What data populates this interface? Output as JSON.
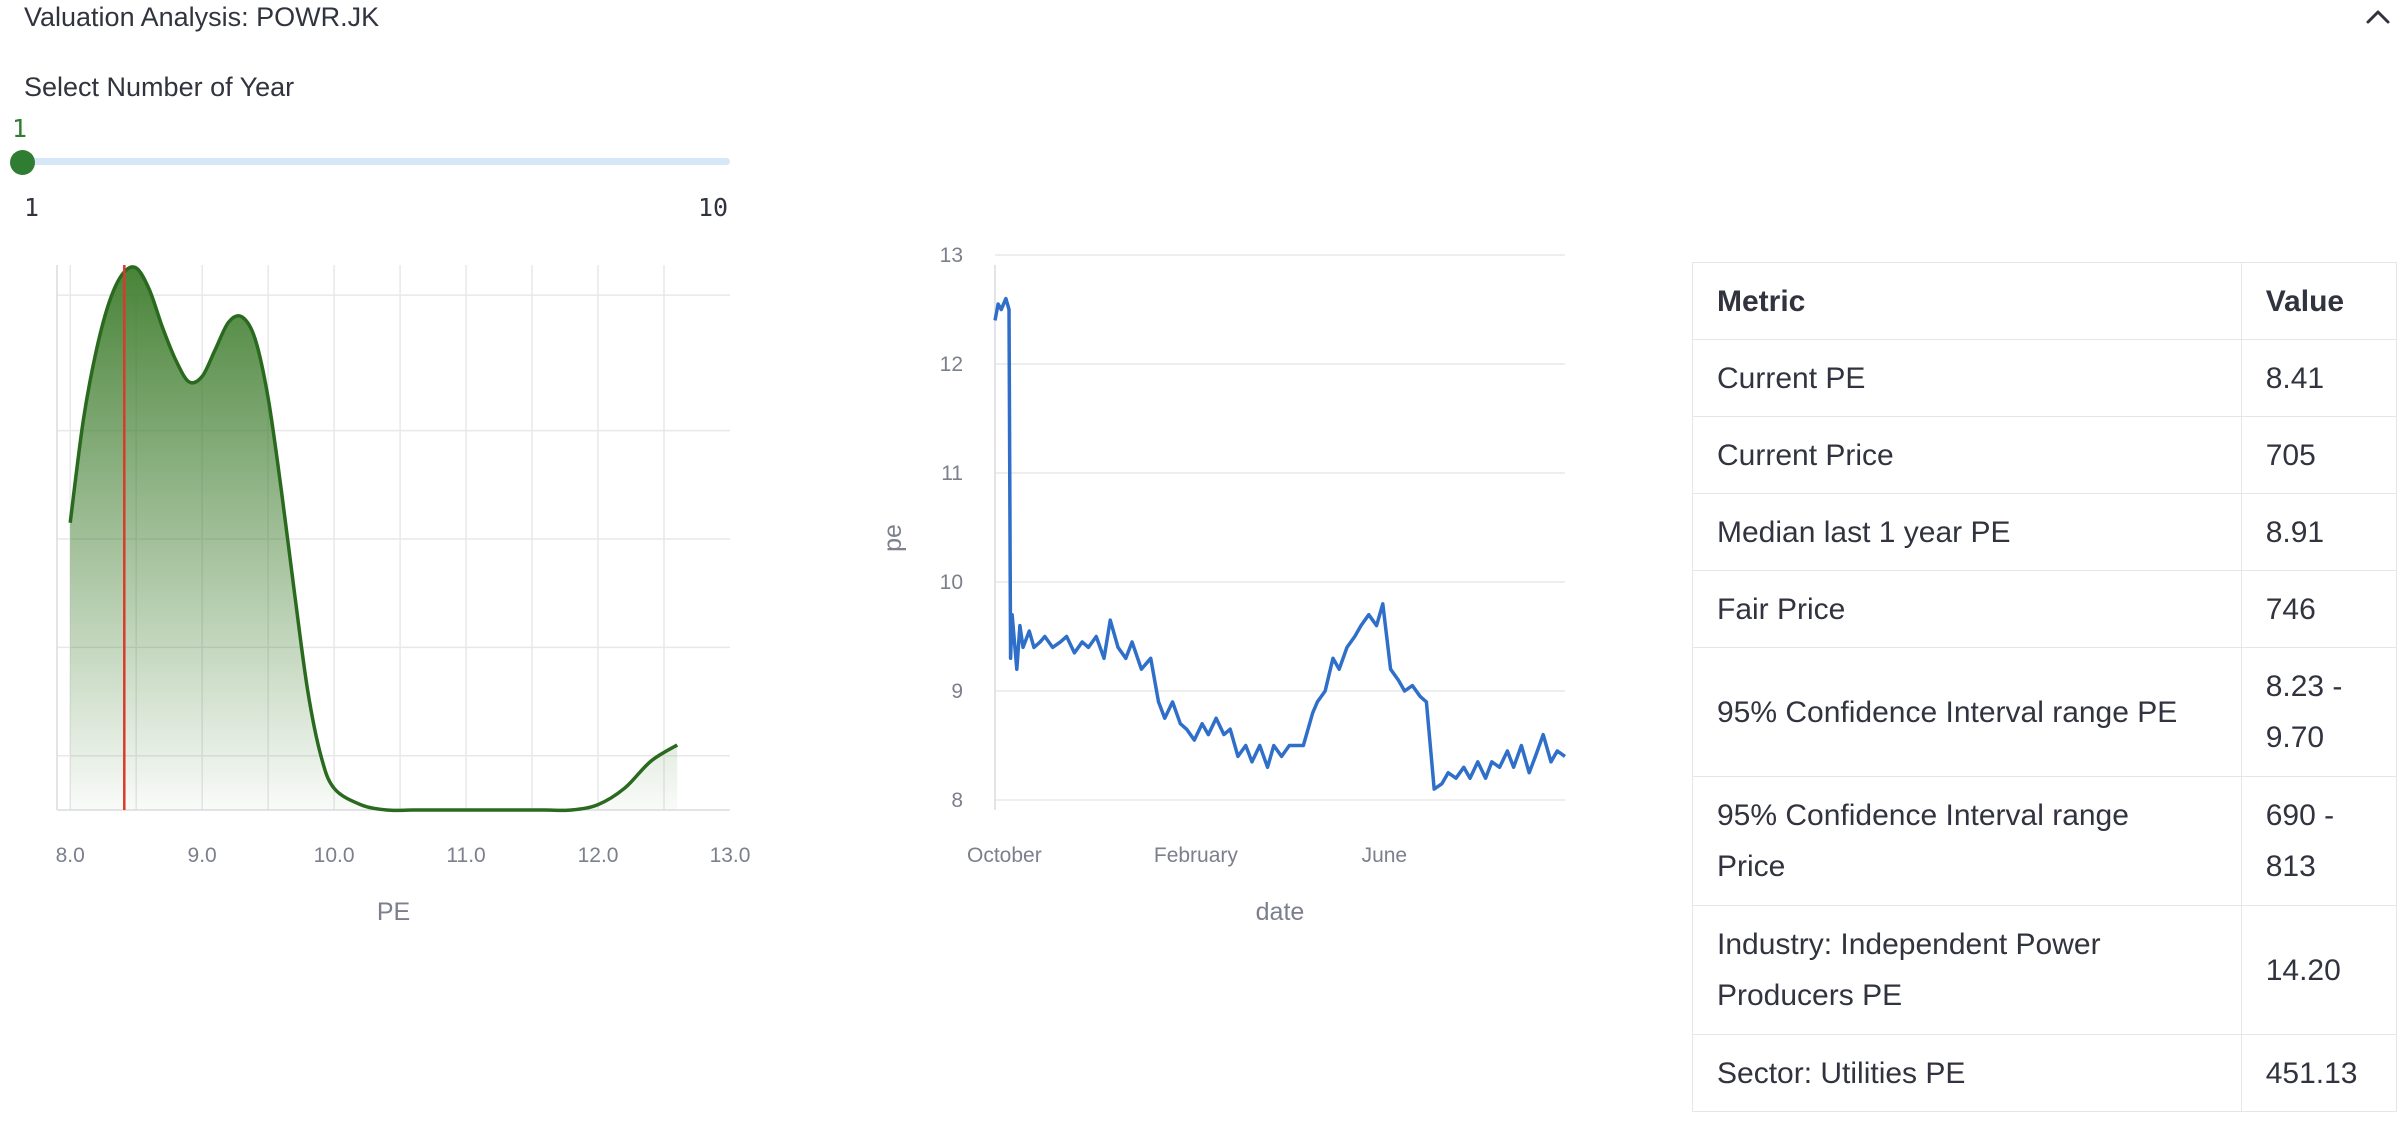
{
  "expander": {
    "title": "Valuation Analysis: POWR.JK",
    "collapse_icon": "chevron-up-icon"
  },
  "slider": {
    "label": "Select Number of Year",
    "value": "1",
    "min": "1",
    "max": "10"
  },
  "colors": {
    "accent_green": "#2e7d32",
    "kde_line": "#2a6a1f",
    "marker_red": "#d93a2b",
    "line_blue": "#2f6fc9",
    "grid": "#e8e8ea",
    "axis_text": "#7c7f8c"
  },
  "chart_data": [
    {
      "type": "area",
      "xlabel": "PE",
      "ylabel": "",
      "xlim": [
        7.9,
        13.0
      ],
      "x_ticks": [
        "8.0",
        "9.0",
        "10.0",
        "11.0",
        "12.0",
        "13.0"
      ],
      "grid": true,
      "marker_line": {
        "x": 8.41
      },
      "series": [
        {
          "x": [
            8.0,
            8.1,
            8.2,
            8.3,
            8.4,
            8.5,
            8.6,
            8.7,
            8.8,
            8.9,
            9.0,
            9.1,
            9.2,
            9.3,
            9.4,
            9.5,
            9.6,
            9.7,
            9.8,
            9.9,
            10.0,
            10.2,
            10.4,
            10.6,
            10.8,
            11.0,
            11.2,
            11.4,
            11.6,
            11.8,
            12.0,
            12.2,
            12.4,
            12.6
          ],
          "y": [
            0.53,
            0.72,
            0.85,
            0.94,
            0.99,
            1.0,
            0.96,
            0.89,
            0.83,
            0.79,
            0.8,
            0.85,
            0.9,
            0.91,
            0.87,
            0.76,
            0.59,
            0.4,
            0.22,
            0.1,
            0.04,
            0.01,
            0.0,
            0.0,
            0.0,
            0.0,
            0.0,
            0.0,
            0.0,
            0.0,
            0.01,
            0.04,
            0.09,
            0.12
          ]
        }
      ]
    },
    {
      "type": "line",
      "xlabel": "date",
      "ylabel": "pe",
      "ylim": [
        7.9,
        13.1
      ],
      "y_ticks": [
        "8",
        "9",
        "10",
        "11",
        "12",
        "13"
      ],
      "x_ticks": [
        "October",
        "February",
        "June"
      ],
      "grid": true,
      "series": [
        {
          "x": [
            "2023-09-25",
            "2023-09-27",
            "2023-09-29",
            "2023-10-02",
            "2023-10-04",
            "2023-10-05",
            "2023-10-06",
            "2023-10-09",
            "2023-10-11",
            "2023-10-13",
            "2023-10-17",
            "2023-10-20",
            "2023-10-24",
            "2023-10-27",
            "2023-11-01",
            "2023-11-06",
            "2023-11-10",
            "2023-11-15",
            "2023-11-20",
            "2023-11-24",
            "2023-11-29",
            "2023-12-04",
            "2023-12-08",
            "2023-12-13",
            "2023-12-18",
            "2023-12-22",
            "2023-12-28",
            "2024-01-03",
            "2024-01-08",
            "2024-01-12",
            "2024-01-17",
            "2024-01-22",
            "2024-01-26",
            "2024-01-31",
            "2024-02-05",
            "2024-02-09",
            "2024-02-14",
            "2024-02-19",
            "2024-02-23",
            "2024-02-28",
            "2024-03-04",
            "2024-03-08",
            "2024-03-13",
            "2024-03-18",
            "2024-03-22",
            "2024-03-27",
            "2024-04-01",
            "2024-04-05",
            "2024-04-10",
            "2024-04-16",
            "2024-04-19",
            "2024-04-24",
            "2024-04-29",
            "2024-05-03",
            "2024-05-08",
            "2024-05-13",
            "2024-05-17",
            "2024-05-22",
            "2024-05-27",
            "2024-05-31",
            "2024-06-05",
            "2024-06-10",
            "2024-06-14",
            "2024-06-19",
            "2024-06-24",
            "2024-06-28",
            "2024-07-03",
            "2024-07-08",
            "2024-07-12",
            "2024-07-17",
            "2024-07-22",
            "2024-07-26",
            "2024-07-31",
            "2024-08-05",
            "2024-08-09",
            "2024-08-14",
            "2024-08-19",
            "2024-08-23",
            "2024-08-28",
            "2024-09-02",
            "2024-09-06",
            "2024-09-11",
            "2024-09-16",
            "2024-09-20",
            "2024-09-25"
          ],
          "y": [
            12.4,
            12.55,
            12.5,
            12.6,
            12.5,
            9.3,
            9.7,
            9.2,
            9.6,
            9.4,
            9.55,
            9.4,
            9.45,
            9.5,
            9.4,
            9.45,
            9.5,
            9.35,
            9.45,
            9.4,
            9.5,
            9.3,
            9.65,
            9.4,
            9.3,
            9.45,
            9.2,
            9.3,
            8.9,
            8.75,
            8.9,
            8.7,
            8.65,
            8.55,
            8.7,
            8.6,
            8.75,
            8.6,
            8.65,
            8.4,
            8.5,
            8.35,
            8.5,
            8.3,
            8.5,
            8.4,
            8.5,
            8.5,
            8.5,
            8.8,
            8.9,
            9.0,
            9.3,
            9.2,
            9.4,
            9.5,
            9.6,
            9.7,
            9.6,
            9.8,
            9.2,
            9.1,
            9.0,
            9.05,
            8.95,
            8.9,
            8.1,
            8.15,
            8.25,
            8.2,
            8.3,
            8.2,
            8.35,
            8.2,
            8.35,
            8.3,
            8.45,
            8.3,
            8.5,
            8.25,
            8.4,
            8.6,
            8.35,
            8.45,
            8.4
          ]
        }
      ]
    }
  ],
  "table": {
    "headers": [
      "Metric",
      "Value"
    ],
    "rows": [
      [
        "Current PE",
        "8.41"
      ],
      [
        "Current Price",
        "705"
      ],
      [
        "Median last 1 year PE",
        "8.91"
      ],
      [
        "Fair Price",
        "746"
      ],
      [
        "95% Confidence Interval range PE",
        "8.23 - 9.70"
      ],
      [
        "95% Confidence Interval range Price",
        "690 - 813"
      ],
      [
        "Industry: Independent Power Producers PE",
        "14.20"
      ],
      [
        "Sector: Utilities PE",
        "451.13"
      ]
    ]
  }
}
